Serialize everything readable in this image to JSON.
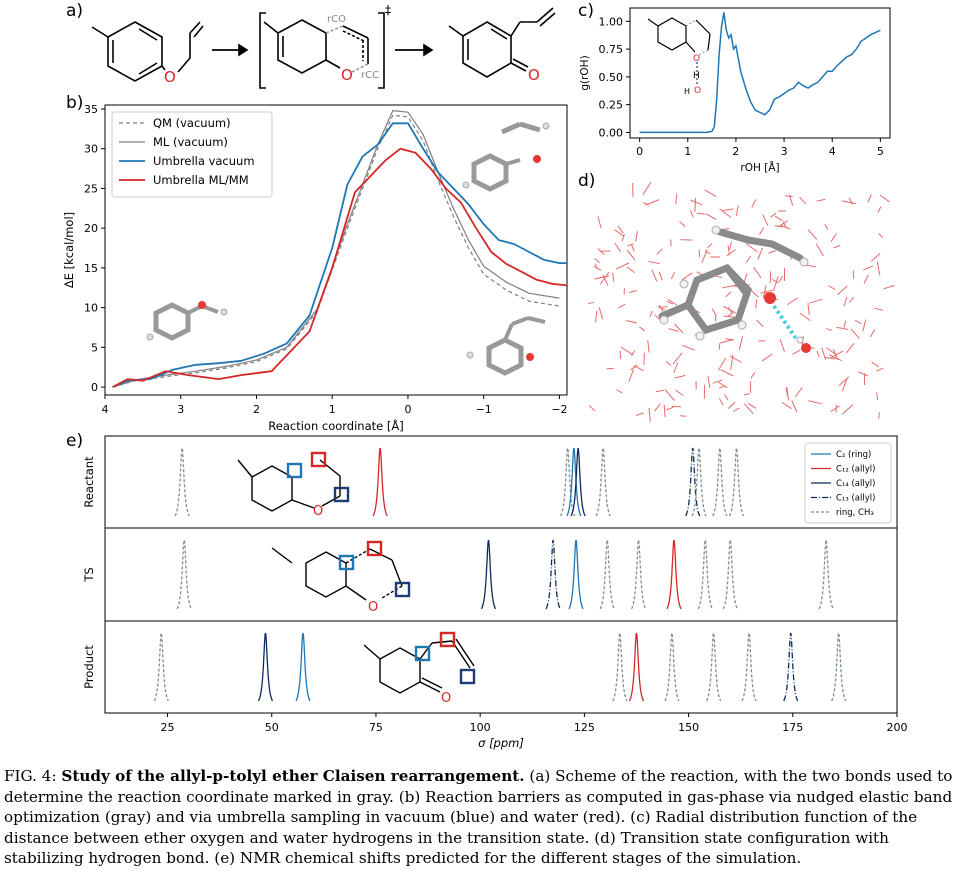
{
  "panels": {
    "a": "a)",
    "b": "b)",
    "c": "c)",
    "d": "d)",
    "e": "e)"
  },
  "scheme": {
    "ts_label_co": "rCO",
    "ts_label_cc": "rCC",
    "ts_dagger": "‡",
    "atom_O": "O"
  },
  "colors": {
    "qm": "#7f7f7f",
    "ml": "#7f7f7f",
    "umbrella_vacuum": "#1f77b4",
    "umbrella_mlmm": "#d62728",
    "c2": "#1f77b4",
    "c12": "#d62728",
    "c14": "#0d2b5c",
    "c13": "#0d2b5c",
    "ring": "#7f8c8d"
  },
  "chart_data": [
    {
      "id": "b",
      "type": "line",
      "xlabel": "Reaction coordinate [Å]",
      "ylabel": "ΔE [kcal/mol]",
      "xlim": [
        4,
        -2.1
      ],
      "ylim": [
        -1,
        35.5
      ],
      "xticks": [
        4,
        3,
        2,
        1,
        0,
        -1,
        -2
      ],
      "xtick_labels": [
        "4",
        "3",
        "2",
        "1",
        "0",
        "−1",
        "−2"
      ],
      "yticks": [
        0,
        5,
        10,
        15,
        20,
        25,
        30,
        35
      ],
      "legend_position": "top-left",
      "series": [
        {
          "name": "QM (vacuum)",
          "style": "dashed",
          "x": [
            3.9,
            3.6,
            3.2,
            2.8,
            2.4,
            2.0,
            1.6,
            1.2,
            0.8,
            0.4,
            0.2,
            0.0,
            -0.2,
            -0.4,
            -0.6,
            -0.8,
            -1.0,
            -1.3,
            -1.6,
            -2.0
          ],
          "y": [
            0,
            0.8,
            1.3,
            1.8,
            2.4,
            3.2,
            4.8,
            9.5,
            20,
            30,
            34.2,
            34.0,
            31,
            26,
            21.5,
            17.5,
            14.2,
            12.2,
            10.8,
            10.2
          ]
        },
        {
          "name": "ML (vacuum)",
          "style": "solid-thin",
          "x": [
            3.9,
            3.6,
            3.2,
            2.8,
            2.4,
            2.0,
            1.6,
            1.2,
            0.8,
            0.4,
            0.2,
            0.0,
            -0.2,
            -0.4,
            -0.6,
            -0.8,
            -1.0,
            -1.3,
            -1.6,
            -2.0
          ],
          "y": [
            0,
            0.9,
            1.5,
            2.0,
            2.6,
            3.4,
            5.0,
            9.8,
            20.5,
            30.5,
            34.8,
            34.6,
            31.8,
            27,
            22.5,
            18.5,
            15.2,
            13.2,
            11.8,
            11.2
          ]
        },
        {
          "name": "Umbrella vacuum",
          "style": "solid",
          "x": [
            3.9,
            3.7,
            3.4,
            3.1,
            2.8,
            2.5,
            2.2,
            1.9,
            1.6,
            1.3,
            1.0,
            0.8,
            0.6,
            0.4,
            0.2,
            0.0,
            -0.2,
            -0.4,
            -0.6,
            -0.8,
            -1.0,
            -1.2,
            -1.4,
            -1.6,
            -1.8,
            -2.0,
            -2.1
          ],
          "y": [
            0,
            0.8,
            1.0,
            2.2,
            2.8,
            3.0,
            3.3,
            4.2,
            5.5,
            9.0,
            17.5,
            25.5,
            29.0,
            30.5,
            33.2,
            33.2,
            30.0,
            27.0,
            25.0,
            23.0,
            20.5,
            18.5,
            18.0,
            17.0,
            16.0,
            15.6,
            15.6
          ]
        },
        {
          "name": "Umbrella ML/MM",
          "style": "solid",
          "x": [
            3.9,
            3.7,
            3.5,
            3.2,
            2.9,
            2.5,
            2.2,
            1.8,
            1.3,
            1.0,
            0.7,
            0.5,
            0.3,
            0.1,
            -0.1,
            -0.3,
            -0.5,
            -0.7,
            -0.9,
            -1.1,
            -1.3,
            -1.5,
            -1.7,
            -1.9,
            -2.1
          ],
          "y": [
            0,
            1.0,
            0.8,
            2.0,
            1.5,
            1.0,
            1.5,
            2.0,
            7.0,
            15.0,
            24.5,
            26.5,
            28.5,
            30.0,
            29.5,
            27.5,
            25.0,
            23.2,
            20.0,
            17.0,
            15.5,
            14.5,
            13.5,
            13.0,
            12.8
          ]
        }
      ]
    },
    {
      "id": "c",
      "type": "line",
      "xlabel": "rOH [Å]",
      "ylabel": "g(rOH)",
      "xlim": [
        -0.2,
        5.2
      ],
      "ylim": [
        -0.05,
        1.12
      ],
      "xticks": [
        0,
        1,
        2,
        3,
        4,
        5
      ],
      "yticks": [
        0.0,
        0.25,
        0.5,
        0.75,
        1.0
      ],
      "ytick_labels": [
        "0.00",
        "0.25",
        "0.50",
        "0.75",
        "1.00"
      ],
      "series": [
        {
          "x": [
            0,
            1.4,
            1.5,
            1.55,
            1.6,
            1.65,
            1.7,
            1.75,
            1.8,
            1.85,
            1.9,
            1.95,
            2.0,
            2.1,
            2.2,
            2.3,
            2.4,
            2.5,
            2.6,
            2.7,
            2.8,
            2.9,
            3.0,
            3.1,
            3.2,
            3.3,
            3.4,
            3.5,
            3.6,
            3.7,
            3.8,
            3.9,
            4.0,
            4.1,
            4.2,
            4.3,
            4.4,
            4.5,
            4.6,
            4.7,
            4.8,
            4.9,
            5.0
          ],
          "y": [
            0,
            0,
            0.01,
            0.05,
            0.3,
            0.7,
            0.95,
            1.08,
            0.92,
            0.85,
            0.88,
            0.75,
            0.78,
            0.55,
            0.4,
            0.28,
            0.2,
            0.18,
            0.16,
            0.2,
            0.3,
            0.32,
            0.35,
            0.38,
            0.4,
            0.45,
            0.42,
            0.4,
            0.43,
            0.45,
            0.5,
            0.55,
            0.55,
            0.6,
            0.64,
            0.68,
            0.7,
            0.75,
            0.82,
            0.85,
            0.88,
            0.9,
            0.92
          ]
        }
      ]
    },
    {
      "id": "e",
      "type": "line",
      "xlabel": "σ [ppm]",
      "xlim": [
        10,
        200
      ],
      "xticks": [
        25,
        50,
        75,
        100,
        125,
        150,
        175,
        200
      ],
      "rows": [
        "Reactant",
        "TS",
        "Product"
      ],
      "legend": [
        {
          "label": "C₂ (ring)",
          "style": "solid",
          "key": "c2"
        },
        {
          "label": "C₁₂ (allyl)",
          "style": "solid",
          "key": "c12"
        },
        {
          "label": "C₁₄ (allyl)",
          "style": "solid",
          "key": "c14"
        },
        {
          "label": "C₁₃ (allyl)",
          "style": "dashdot",
          "key": "c13"
        },
        {
          "label": "ring, CH₃",
          "style": "dashed",
          "key": "ring"
        }
      ],
      "peaks": [
        [
          {
            "x": 28.5,
            "key": "ring"
          },
          {
            "x": 76,
            "key": "c12"
          },
          {
            "x": 121,
            "key": "ring"
          },
          {
            "x": 122.5,
            "key": "c2"
          },
          {
            "x": 123.5,
            "key": "c14"
          },
          {
            "x": 129.5,
            "key": "ring"
          },
          {
            "x": 151,
            "key": "c13"
          },
          {
            "x": 152.5,
            "key": "ring"
          },
          {
            "x": 157.5,
            "key": "ring"
          },
          {
            "x": 161.5,
            "key": "ring"
          }
        ],
        [
          {
            "x": 29,
            "key": "ring"
          },
          {
            "x": 102,
            "key": "c14"
          },
          {
            "x": 117.5,
            "key": "c13"
          },
          {
            "x": 123,
            "key": "c2"
          },
          {
            "x": 130.5,
            "key": "ring"
          },
          {
            "x": 138,
            "key": "ring"
          },
          {
            "x": 146.5,
            "key": "c12"
          },
          {
            "x": 154,
            "key": "ring"
          },
          {
            "x": 160,
            "key": "ring"
          },
          {
            "x": 183,
            "key": "ring"
          }
        ],
        [
          {
            "x": 23.5,
            "key": "ring"
          },
          {
            "x": 48.5,
            "key": "c14"
          },
          {
            "x": 57.5,
            "key": "c2"
          },
          {
            "x": 133.5,
            "key": "ring"
          },
          {
            "x": 137.5,
            "key": "c12"
          },
          {
            "x": 146,
            "key": "ring"
          },
          {
            "x": 156,
            "key": "ring"
          },
          {
            "x": 164.5,
            "key": "ring"
          },
          {
            "x": 174.5,
            "key": "c13"
          },
          {
            "x": 186,
            "key": "ring"
          }
        ]
      ]
    }
  ],
  "caption": {
    "fig": "FIG. 4:",
    "title": "Study of the allyl-p-tolyl ether Claisen rearrangement.",
    "body": "(a) Scheme of the reaction, with the two bonds used to determine the reaction coordinate marked in gray. (b) Reaction barriers as computed in gas-phase via nudged elastic band optimization (gray) and via umbrella sampling in vacuum (blue) and water (red). (c) Radial distribution function of the distance between ether oxygen and water hydrogens in the transition state. (d) Transition state configuration with stabilizing hydrogen bond. (e) NMR chemical shifts predicted for the different stages of the simulation."
  }
}
